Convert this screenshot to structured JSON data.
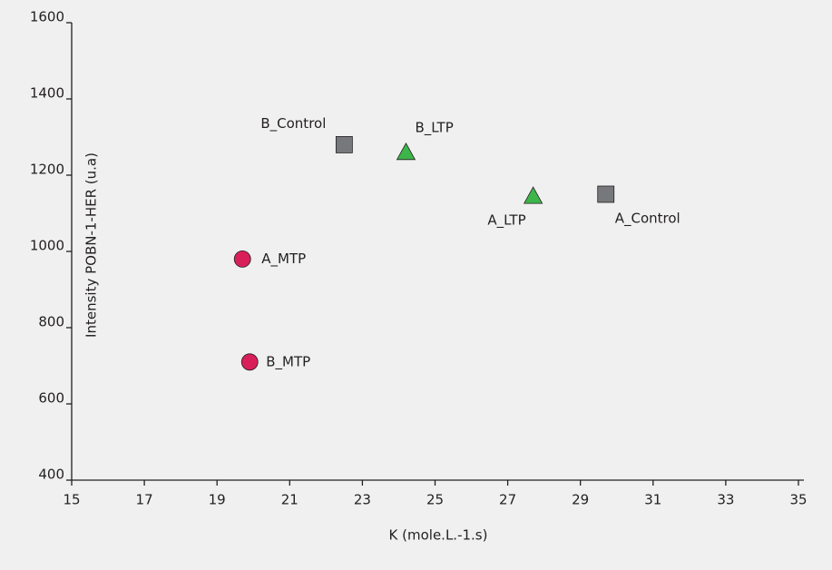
{
  "chart_data": {
    "type": "scatter",
    "x_label": "K (mole.L.-1.s)",
    "y_label": "Intensity POBN-1-HER (u.a)",
    "xlim": [
      15,
      35
    ],
    "ylim": [
      400,
      1600
    ],
    "xticks": [
      15,
      17,
      19,
      21,
      23,
      25,
      27,
      29,
      31,
      33,
      35
    ],
    "yticks": [
      400,
      600,
      800,
      1000,
      1200,
      1400,
      1600
    ],
    "grid": false,
    "series": [
      {
        "marker": "square",
        "color": "#77787b",
        "labels": [
          "B_Control",
          "A_Control"
        ],
        "x": [
          22.5,
          29.7
        ],
        "y": [
          1280,
          1150
        ]
      },
      {
        "marker": "triangle",
        "color": "#3db54a",
        "labels": [
          "B_LTP",
          "A_LTP"
        ],
        "x": [
          24.2,
          27.7
        ],
        "y": [
          1260,
          1145
        ]
      },
      {
        "marker": "circle",
        "color": "#d91f5a",
        "labels": [
          "A_MTP",
          "B_MTP"
        ],
        "x": [
          19.7,
          19.9
        ],
        "y": [
          980,
          710
        ]
      }
    ]
  }
}
